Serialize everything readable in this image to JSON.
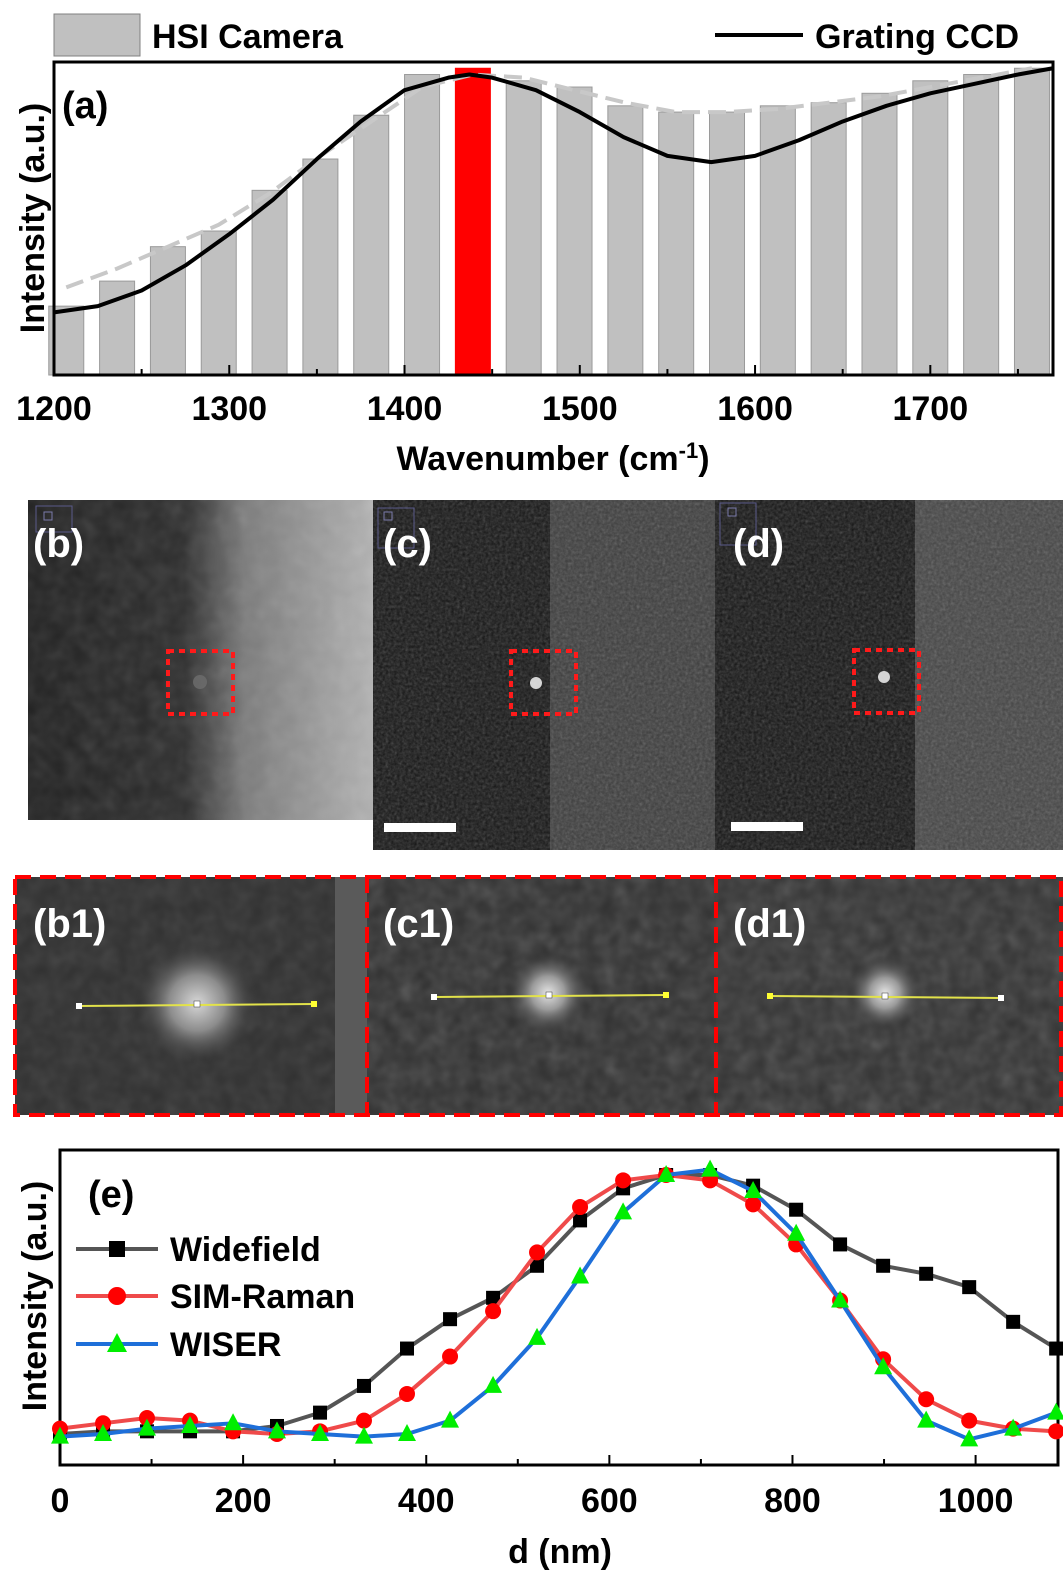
{
  "chart_data": [
    {
      "panel": "(a)",
      "type": "bar",
      "xlabel": "Wavenumber (cm",
      "xlabel_sup": "-1",
      "xlabel_end": ")",
      "ylabel": "Intensity (a.u.)",
      "xlim": [
        1200,
        1770
      ],
      "ylim": [
        0,
        1
      ],
      "xticks": [
        "1200",
        "1300",
        "1400",
        "1500",
        "1600",
        "1700"
      ],
      "legend": [
        {
          "name": "HSI Camera",
          "style": "bar",
          "color": "#c0c0c0"
        },
        {
          "name": "Grating CCD",
          "style": "line",
          "color": "#000000"
        }
      ],
      "bars": {
        "name": "HSI Camera",
        "x": [
          1207,
          1236,
          1265,
          1294,
          1323,
          1352,
          1381,
          1410,
          1439,
          1468,
          1497,
          1526,
          1555,
          1584,
          1613,
          1642,
          1671,
          1700,
          1729,
          1758
        ],
        "values": [
          0.22,
          0.3,
          0.41,
          0.46,
          0.59,
          0.69,
          0.83,
          0.96,
          0.98,
          0.94,
          0.92,
          0.86,
          0.84,
          0.84,
          0.86,
          0.87,
          0.9,
          0.94,
          0.96,
          0.98
        ],
        "highlight_index": 8,
        "highlight_color": "#ff0000"
      },
      "dashed_fit": {
        "x": [
          1207,
          1236,
          1265,
          1294,
          1323,
          1352,
          1381,
          1410,
          1439,
          1468,
          1497,
          1526,
          1555,
          1584,
          1613,
          1642,
          1671,
          1700,
          1729,
          1758
        ],
        "y": [
          0.28,
          0.34,
          0.41,
          0.48,
          0.58,
          0.7,
          0.81,
          0.92,
          0.96,
          0.95,
          0.91,
          0.87,
          0.84,
          0.84,
          0.85,
          0.87,
          0.89,
          0.92,
          0.95,
          0.98
        ],
        "color": "#c8c8c8"
      },
      "line": {
        "name": "Grating CCD",
        "x": [
          1200,
          1225,
          1250,
          1275,
          1300,
          1325,
          1350,
          1375,
          1400,
          1425,
          1437,
          1450,
          1475,
          1500,
          1525,
          1550,
          1575,
          1600,
          1625,
          1650,
          1675,
          1700,
          1725,
          1750,
          1770
        ],
        "y": [
          0.2,
          0.22,
          0.27,
          0.35,
          0.45,
          0.56,
          0.69,
          0.81,
          0.91,
          0.95,
          0.96,
          0.95,
          0.91,
          0.84,
          0.76,
          0.7,
          0.68,
          0.7,
          0.75,
          0.81,
          0.86,
          0.9,
          0.93,
          0.96,
          0.98
        ]
      }
    },
    {
      "panel": "(e)",
      "type": "line",
      "xlabel": "d (nm)",
      "ylabel": "Intensity (a.u.)",
      "xlim": [
        0,
        1090
      ],
      "ylim": [
        0,
        1
      ],
      "xticks": [
        "0",
        "200",
        "400",
        "600",
        "800",
        "1000"
      ],
      "legend_position": "left",
      "x": [
        0,
        47,
        95,
        142,
        189,
        237,
        284,
        332,
        379,
        426,
        473,
        521,
        568,
        615,
        662,
        710,
        757,
        804,
        852,
        899,
        946,
        993,
        1041,
        1088
      ],
      "series": [
        {
          "name": "Widefield",
          "color": "#404040",
          "line_color": "#555555",
          "marker": "square",
          "marker_color": "#000000",
          "values": [
            0.03,
            0.04,
            0.04,
            0.04,
            0.04,
            0.06,
            0.11,
            0.21,
            0.35,
            0.46,
            0.54,
            0.66,
            0.83,
            0.95,
            1.0,
            1.0,
            0.96,
            0.87,
            0.74,
            0.66,
            0.63,
            0.58,
            0.45,
            0.35
          ]
        },
        {
          "name": "SIM-Raman",
          "color": "#ff0000",
          "line_color": "#ef4a4a",
          "marker": "circle",
          "marker_color": "#ff0000",
          "values": [
            0.05,
            0.07,
            0.09,
            0.08,
            0.04,
            0.03,
            0.04,
            0.08,
            0.18,
            0.32,
            0.49,
            0.71,
            0.88,
            0.98,
            1.0,
            0.98,
            0.89,
            0.74,
            0.53,
            0.31,
            0.16,
            0.08,
            0.05,
            0.04
          ]
        },
        {
          "name": "WISER",
          "color": "#00ee00",
          "line_color": "#1e6fd9",
          "marker": "triangle",
          "marker_color": "#00ee00",
          "values": [
            0.02,
            0.03,
            0.05,
            0.06,
            0.07,
            0.04,
            0.03,
            0.02,
            0.03,
            0.08,
            0.21,
            0.39,
            0.62,
            0.86,
            1.0,
            1.02,
            0.94,
            0.78,
            0.53,
            0.28,
            0.08,
            0.01,
            0.05,
            0.11
          ]
        }
      ]
    }
  ],
  "images": {
    "top": [
      {
        "label": "(b)",
        "kind": "widefield"
      },
      {
        "label": "(c)",
        "kind": "sim"
      },
      {
        "label": "(d)",
        "kind": "wiser"
      }
    ],
    "zoom": [
      {
        "label": "(b1)"
      },
      {
        "label": "(c1)"
      },
      {
        "label": "(d1)"
      }
    ]
  }
}
